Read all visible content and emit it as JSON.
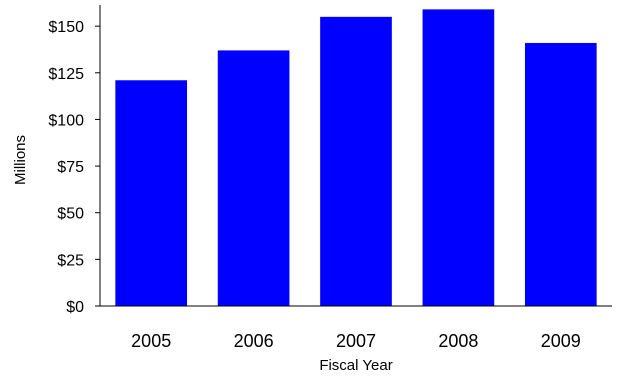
{
  "chart_data": {
    "type": "bar",
    "title": "",
    "xlabel": "Fiscal Year",
    "ylabel": "Millions",
    "categories": [
      "2005",
      "2006",
      "2007",
      "2008",
      "2009"
    ],
    "values": [
      121,
      137,
      155,
      159,
      141
    ],
    "ylim": [
      0,
      160
    ],
    "yticks": [
      0,
      25,
      50,
      75,
      100,
      125,
      150
    ],
    "ytick_labels": [
      "$0",
      "$25",
      "$50",
      "$75",
      "$100",
      "$125",
      "$150"
    ],
    "grid": false,
    "legend": "none",
    "bar_color": "#0000FF"
  }
}
